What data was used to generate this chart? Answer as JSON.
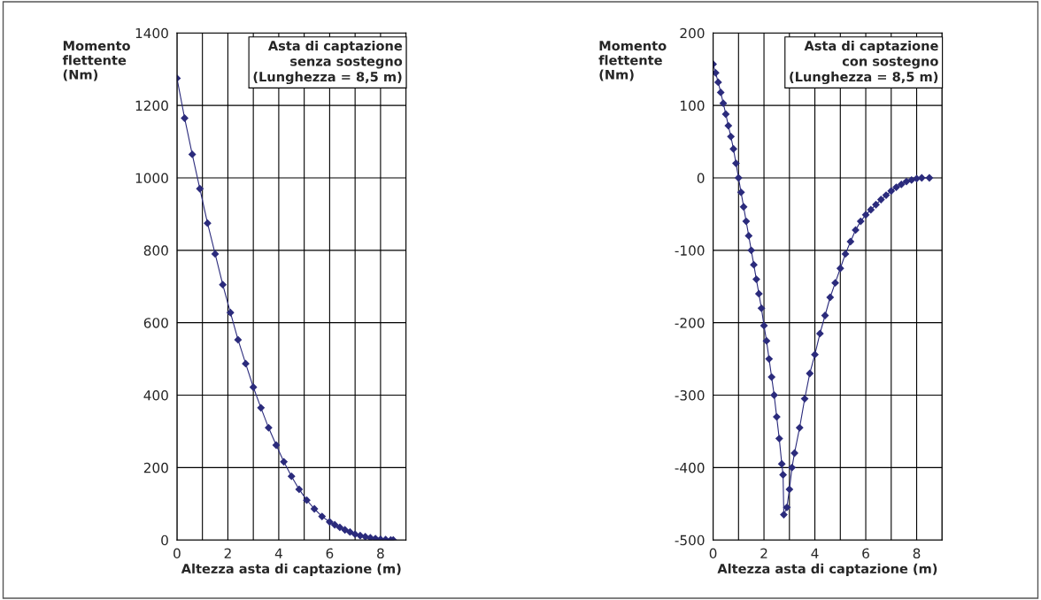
{
  "chart_data": [
    {
      "type": "line",
      "xlabel": "Altezza asta di captazione (m)",
      "ylabel": "Momento\nflettente\n(Nm)",
      "annotations": [
        "Asta di captazione\nsenza sostegno\n(Lunghezza = 8,5 m)"
      ],
      "series": [
        {
          "color": "#2b2b7c",
          "x": [
            0,
            0.3,
            0.6,
            0.9,
            1.2,
            1.5,
            1.8,
            2.1,
            2.4,
            2.7,
            3.0,
            3.3,
            3.6,
            3.9,
            4.2,
            4.5,
            4.8,
            5.1,
            5.4,
            5.7,
            6.0,
            6.2,
            6.4,
            6.6,
            6.8,
            7.0,
            7.2,
            7.4,
            7.6,
            7.8,
            8.0,
            8.2,
            8.4,
            8.5
          ],
          "values": [
            1275,
            1165,
            1065,
            970,
            875,
            790,
            705,
            628,
            553,
            487,
            422,
            365,
            310,
            262,
            216,
            176,
            140,
            110,
            86,
            65,
            50,
            42,
            35,
            28,
            22,
            16,
            12,
            9,
            6,
            4,
            2,
            1,
            0,
            0
          ]
        }
      ],
      "marker": "diamond",
      "line_style": "solid",
      "grid": true,
      "legend": false,
      "xlim": [
        0,
        9
      ],
      "xticks": [
        0,
        {
          "value": 1,
          "label": null
        },
        2,
        {
          "value": 3,
          "label": null
        },
        4,
        {
          "value": 5,
          "label": null
        },
        6,
        {
          "value": 7,
          "label": null
        },
        8,
        {
          "value": 9,
          "label": null
        }
      ],
      "ylim": [
        0,
        1400
      ],
      "yticks": [
        0,
        200,
        400,
        600,
        800,
        1000,
        1200,
        1400
      ]
    },
    {
      "type": "line",
      "xlabel": "Altezza asta di captazione (m)",
      "ylabel": "Momento\nflettente\n(Nm)",
      "annotations": [
        "Asta di captazione\ncon sostegno\n(Lunghezza = 8,5 m)"
      ],
      "series": [
        {
          "color": "#2b2b7c",
          "x": [
            0,
            0.1,
            0.2,
            0.3,
            0.4,
            0.5,
            0.6,
            0.7,
            0.8,
            0.9,
            1.0,
            1.1,
            1.2,
            1.3,
            1.4,
            1.5,
            1.6,
            1.7,
            1.8,
            1.9,
            2.0,
            2.1,
            2.2,
            2.3,
            2.4,
            2.5,
            2.6,
            2.7,
            2.75,
            2.78,
            2.9,
            3.0,
            3.1,
            3.2,
            3.4,
            3.6,
            3.8,
            4.0,
            4.2,
            4.4,
            4.6,
            4.8,
            5.0,
            5.2,
            5.4,
            5.6,
            5.8,
            6.0,
            6.2,
            6.4,
            6.6,
            6.8,
            7.0,
            7.2,
            7.4,
            7.6,
            7.8,
            8.0,
            8.2,
            8.5
          ],
          "values": [
            157,
            145,
            132,
            118,
            103,
            88,
            72,
            57,
            40,
            20,
            0,
            -20,
            -40,
            -60,
            -80,
            -100,
            -120,
            -140,
            -160,
            -180,
            -204,
            -225,
            -250,
            -275,
            -300,
            -330,
            -360,
            -395,
            -410,
            -465,
            -455,
            -430,
            -400,
            -380,
            -345,
            -305,
            -270,
            -244,
            -215,
            -190,
            -165,
            -145,
            -125,
            -105,
            -88,
            -72,
            -60,
            -51,
            -44,
            -37,
            -30,
            -24,
            -18,
            -13,
            -9,
            -5,
            -3,
            -1,
            0,
            0
          ]
        }
      ],
      "marker": "diamond",
      "line_style": "solid",
      "grid": true,
      "legend": false,
      "xlim": [
        0,
        9
      ],
      "xticks": [
        0,
        {
          "value": 1,
          "label": null
        },
        2,
        {
          "value": 3,
          "label": null
        },
        4,
        {
          "value": 5,
          "label": null
        },
        6,
        {
          "value": 7,
          "label": null
        },
        8,
        {
          "value": 9,
          "label": null
        }
      ],
      "ylim": [
        -500,
        200
      ],
      "yticks": [
        -500,
        -400,
        -300,
        -200,
        -100,
        0,
        100,
        200
      ]
    }
  ]
}
